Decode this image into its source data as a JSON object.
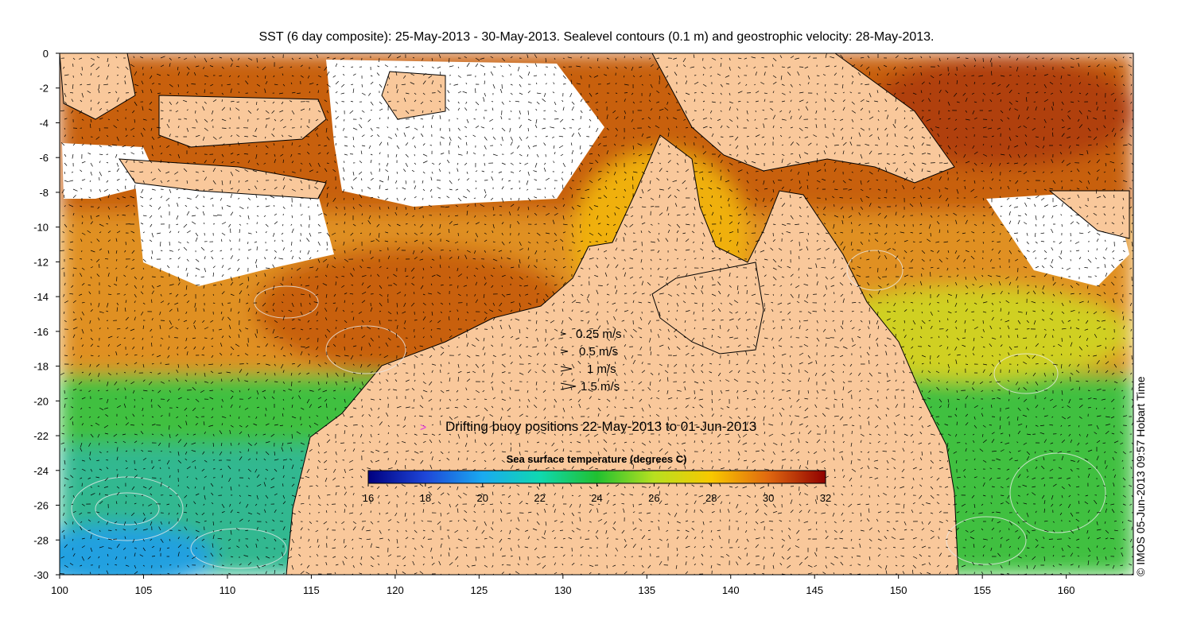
{
  "title": "SST (6 day composite): 25-May-2013 - 30-May-2013. Sealevel contours (0.1 m) and geostrophic velocity: 28-May-2013.",
  "credit": "© IMOS 05-Jun-2013 09:57 Hobart Time",
  "x_ticks": [
    "100",
    "105",
    "110",
    "115",
    "120",
    "125",
    "130",
    "135",
    "140",
    "145",
    "150",
    "155",
    "160"
  ],
  "y_ticks": [
    "0",
    "-2",
    "-4",
    "-6",
    "-8",
    "-10",
    "-12",
    "-14",
    "-16",
    "-18",
    "-20",
    "-22",
    "-24",
    "-26",
    "-28",
    "-30"
  ],
  "x_range": [
    100,
    164
  ],
  "y_range": [
    -30,
    0
  ],
  "velocity_legend": [
    {
      "label": "0.25 m/s",
      "speed": 0.25
    },
    {
      "label": "0.5 m/s",
      "speed": 0.5
    },
    {
      "label": "1 m/s",
      "speed": 1
    },
    {
      "label": "1.5 m/s",
      "speed": 1.5
    }
  ],
  "buoy_legend": {
    "symbol": ">",
    "label": "Drifting buoy positions 22-May-2013 to 01-Jun-2013",
    "color": "#e030e0"
  },
  "colorbar": {
    "title": "Sea surface temperature (degrees C)",
    "range": [
      16,
      32
    ],
    "ticks": [
      "16",
      "18",
      "20",
      "22",
      "24",
      "26",
      "28",
      "30",
      "32"
    ]
  },
  "colors": {
    "land": "#f9c89b",
    "cloud": "#ffffff",
    "contour": "#e8e8e8",
    "arrow": "#000000",
    "buoy": "#e030e0"
  }
}
